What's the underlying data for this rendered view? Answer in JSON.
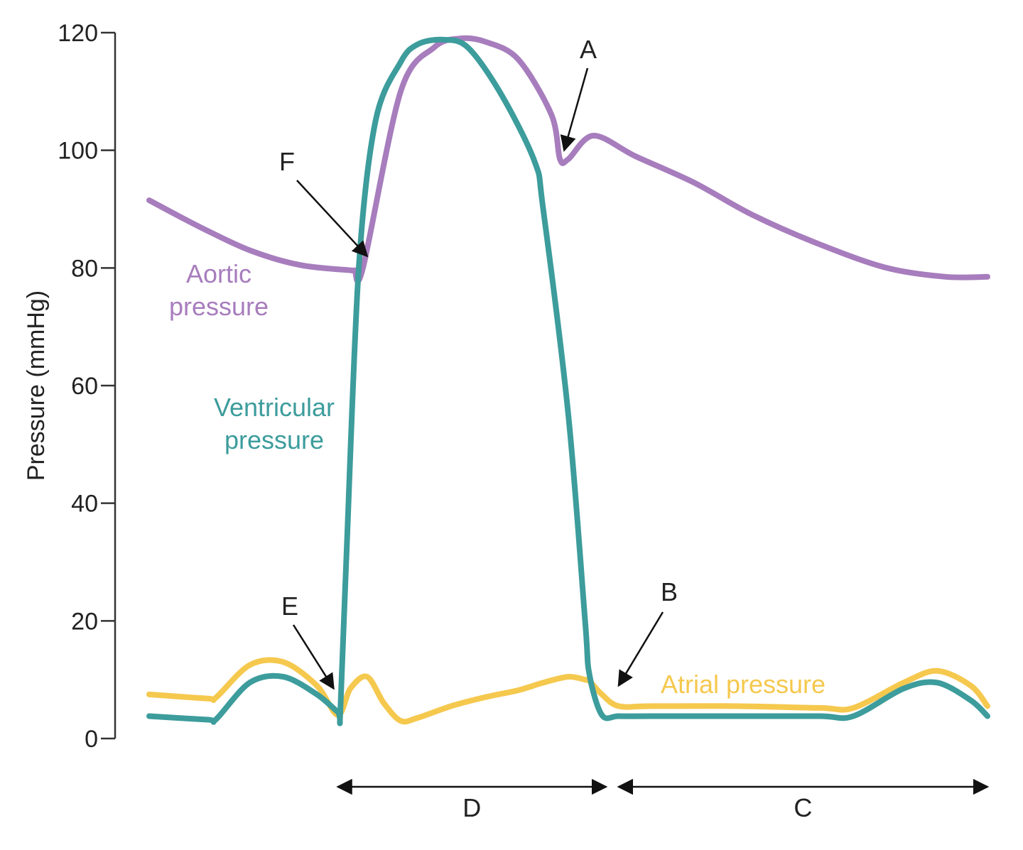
{
  "chart_data": {
    "type": "line",
    "ylabel": "Pressure (mmHg)",
    "xlabel": "",
    "ylim": [
      0,
      120
    ],
    "xlim": [
      0,
      1
    ],
    "y_ticks": [
      0,
      20,
      40,
      60,
      80,
      100,
      120
    ],
    "y_tick_labels": [
      "0",
      "20",
      "40",
      "60",
      "80",
      "100",
      "120"
    ],
    "grid": false,
    "series": [
      {
        "name": "Aortic pressure",
        "color": "#a77dbd",
        "label_lines": [
          "Aortic",
          "pressure"
        ],
        "x": [
          0.0,
          0.06,
          0.12,
          0.18,
          0.24,
          0.245,
          0.255,
          0.3,
          0.34,
          0.37,
          0.4,
          0.44,
          0.48,
          0.49,
          0.5,
          0.53,
          0.58,
          0.65,
          0.72,
          0.8,
          0.88,
          0.95,
          1.0
        ],
        "y": [
          91.5,
          87,
          83,
          80.5,
          79.6,
          79.6,
          80,
          110,
          117.5,
          119,
          118.5,
          115.5,
          106,
          98.5,
          98.5,
          102.5,
          99,
          94.5,
          89,
          84,
          80,
          78.5,
          78.5
        ]
      },
      {
        "name": "Ventricular pressure",
        "color": "#3d9c9c",
        "label_lines": [
          "Ventricular",
          "pressure"
        ],
        "x": [
          0.0,
          0.07,
          0.08,
          0.12,
          0.16,
          0.2,
          0.225,
          0.228,
          0.235,
          0.25,
          0.27,
          0.3,
          0.32,
          0.35,
          0.38,
          0.42,
          0.46,
          0.47,
          0.5,
          0.52,
          0.525,
          0.54,
          0.56,
          0.6,
          0.7,
          0.8,
          0.84,
          0.9,
          0.94,
          0.98,
          1.0
        ],
        "y": [
          3.8,
          3.2,
          3.3,
          9.5,
          10.5,
          7.5,
          4.5,
          4.5,
          30,
          80,
          105,
          115,
          118,
          118.8,
          117.5,
          109.5,
          98,
          90,
          55,
          20,
          11,
          4,
          3.8,
          3.8,
          3.8,
          3.8,
          3.8,
          8.5,
          9.5,
          6.5,
          3.8
        ]
      },
      {
        "name": "Atrial pressure",
        "color": "#f5c84e",
        "label_lines": [
          "Atrial pressure"
        ],
        "x": [
          0.0,
          0.07,
          0.08,
          0.12,
          0.16,
          0.2,
          0.225,
          0.24,
          0.26,
          0.28,
          0.3,
          0.32,
          0.36,
          0.4,
          0.44,
          0.47,
          0.5,
          0.52,
          0.525,
          0.54,
          0.56,
          0.6,
          0.7,
          0.8,
          0.84,
          0.9,
          0.94,
          0.98,
          1.0
        ],
        "y": [
          7.5,
          6.8,
          7,
          12.5,
          13,
          9,
          4,
          8.5,
          10.5,
          6,
          3,
          3.5,
          5.5,
          7,
          8.2,
          9.5,
          10.5,
          10,
          9.8,
          7.5,
          5.5,
          5.5,
          5.5,
          5.2,
          5.2,
          9.5,
          11.5,
          9,
          5.5
        ]
      }
    ],
    "annotations": [
      {
        "label": "A",
        "x": 0.495,
        "y": 100
      },
      {
        "label": "B",
        "x": 0.56,
        "y": 9
      },
      {
        "label": "E",
        "x": 0.22,
        "y": 8.5
      },
      {
        "label": "F",
        "x": 0.26,
        "y": 82
      }
    ],
    "intervals": [
      {
        "label": "D",
        "from": 0.225,
        "to": 0.545
      },
      {
        "label": "C",
        "from": 0.56,
        "to": 1.0
      }
    ]
  }
}
